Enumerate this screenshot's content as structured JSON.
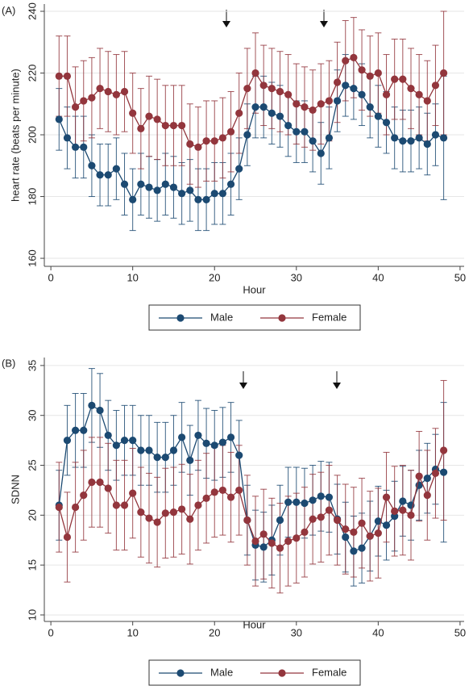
{
  "chart_data": [
    {
      "type": "line",
      "panel_label": "(A)",
      "xlabel": "Hour",
      "ylabel": "heart rate (beats per minute)",
      "x": [
        1,
        2,
        3,
        4,
        5,
        6,
        7,
        8,
        9,
        10,
        11,
        12,
        13,
        14,
        15,
        16,
        17,
        18,
        19,
        20,
        21,
        22,
        23,
        24,
        25,
        26,
        27,
        28,
        29,
        30,
        31,
        32,
        33,
        34,
        35,
        36,
        37,
        38,
        39,
        40,
        41,
        42,
        43,
        44,
        45,
        46,
        47,
        48
      ],
      "xlim": [
        -0.8,
        50.5
      ],
      "xticks": [
        0,
        10,
        20,
        30,
        40,
        50
      ],
      "ylim": [
        157.4,
        242.35
      ],
      "yticks": [
        160,
        180,
        200,
        220,
        240
      ],
      "grid": true,
      "series": [
        {
          "name": "Male",
          "color": "#1c4a72",
          "values": [
            205,
            199,
            196,
            196,
            190,
            187,
            187,
            189,
            184,
            179,
            184,
            183,
            182,
            184,
            183,
            181,
            182,
            179,
            179,
            181,
            181,
            184,
            189,
            200,
            209,
            209,
            207,
            206,
            203,
            201,
            201,
            198,
            194,
            199,
            211,
            216,
            215,
            213,
            209,
            206,
            204,
            199,
            198,
            198,
            199,
            197,
            200,
            199
          ],
          "errors": [
            10,
            10,
            10,
            10,
            10,
            10,
            10,
            10,
            10,
            10,
            10,
            10,
            10,
            10,
            10,
            10,
            10,
            10,
            10,
            10,
            10,
            10,
            10,
            10,
            10,
            10,
            10,
            10,
            10,
            10,
            10,
            10,
            10,
            10,
            10,
            10,
            10,
            10,
            10,
            10,
            10,
            10,
            10,
            10,
            10,
            10,
            10,
            20
          ]
        },
        {
          "name": "Female",
          "color": "#93363d",
          "values": [
            219,
            219,
            209,
            211,
            212,
            215,
            214,
            213,
            214,
            207,
            202,
            206,
            205,
            203,
            203,
            203,
            197,
            196,
            198,
            198,
            199,
            201,
            207,
            215,
            220,
            216,
            215,
            214,
            213,
            210,
            209,
            208,
            210,
            211,
            217,
            224,
            225,
            221,
            219,
            220,
            213,
            218,
            218,
            215,
            213,
            211,
            216,
            220
          ],
          "errors": [
            13,
            13,
            13,
            13,
            13,
            13,
            13,
            13,
            13,
            13,
            13,
            13,
            13,
            13,
            13,
            13,
            13,
            13,
            13,
            13,
            13,
            13,
            13,
            13,
            13,
            13,
            13,
            13,
            13,
            13,
            13,
            13,
            13,
            13,
            13,
            13,
            13,
            13,
            13,
            13,
            13,
            13,
            13,
            13,
            13,
            13,
            13,
            20
          ]
        }
      ]
    },
    {
      "type": "line",
      "panel_label": "(B)",
      "xlabel": "Hour",
      "ylabel": "SDNN",
      "x": [
        1,
        2,
        3,
        4,
        5,
        6,
        7,
        8,
        9,
        10,
        11,
        12,
        13,
        14,
        15,
        16,
        17,
        18,
        19,
        20,
        21,
        22,
        23,
        24,
        25,
        26,
        27,
        28,
        29,
        30,
        31,
        32,
        33,
        34,
        35,
        36,
        37,
        38,
        39,
        40,
        41,
        42,
        43,
        44,
        45,
        46,
        47,
        48
      ],
      "xlim": [
        -0.8,
        50.5
      ],
      "xticks": [
        0,
        10,
        20,
        30,
        40,
        50
      ],
      "ylim": [
        9.35,
        35.8
      ],
      "yticks": [
        10,
        15,
        20,
        25,
        30,
        35
      ],
      "grid": true,
      "series": [
        {
          "name": "Male",
          "color": "#1c4a72",
          "values": [
            21,
            27.5,
            28.5,
            28.5,
            31,
            30.5,
            28,
            27,
            27.5,
            27.5,
            26.5,
            26.5,
            25.8,
            25.8,
            26.5,
            27.8,
            25.5,
            28,
            27.2,
            27,
            27.3,
            27.8,
            26,
            19.5,
            17,
            16.8,
            17.5,
            19.5,
            21.3,
            21.3,
            21.2,
            21.5,
            21.9,
            21.8,
            19.6,
            17.8,
            16.4,
            16.7,
            17.9,
            19.4,
            19,
            19.9,
            21.4,
            21,
            23,
            23.7,
            24.6,
            24.3
          ],
          "errors": [
            3.5,
            3.5,
            3.7,
            3.7,
            3.7,
            3.7,
            3.5,
            3.5,
            3.5,
            3.5,
            3.5,
            3.5,
            3.5,
            3.5,
            3.5,
            3.5,
            3.5,
            3.5,
            3.5,
            3.5,
            3.5,
            3.5,
            3.5,
            3.5,
            3.5,
            3.5,
            3.5,
            3.5,
            3.5,
            3.5,
            3.5,
            3.5,
            3.5,
            3.5,
            3.5,
            3.5,
            3.5,
            3.5,
            3.5,
            3.5,
            3.5,
            3.5,
            3.5,
            3.5,
            3.5,
            3.5,
            3.5,
            7
          ]
        },
        {
          "name": "Female",
          "color": "#93363d",
          "values": [
            20.8,
            17.8,
            20.8,
            22,
            23.3,
            23.3,
            22.7,
            21,
            21,
            22.2,
            20.3,
            19.7,
            19.3,
            20.2,
            20.3,
            20.6,
            19.6,
            21,
            21.7,
            22.3,
            22.5,
            21.8,
            22.5,
            19.5,
            17.4,
            18.1,
            17.2,
            16.7,
            17.4,
            17.7,
            18.3,
            19.6,
            19.8,
            20.5,
            19.5,
            18.6,
            18.3,
            19.2,
            17.9,
            18.2,
            21.8,
            20.4,
            20.5,
            20,
            23.9,
            22,
            24.2,
            26.5
          ],
          "errors": [
            4.5,
            4.5,
            4.5,
            4.5,
            4.5,
            4.5,
            4.5,
            4.5,
            4.5,
            4.5,
            4.5,
            4.5,
            4.5,
            4.5,
            4.5,
            4.5,
            4.5,
            4.5,
            4.5,
            4.5,
            4.5,
            4.5,
            4.5,
            4.5,
            4.5,
            4.5,
            4.5,
            4.5,
            4.5,
            4.5,
            4.5,
            4.5,
            4.5,
            4.5,
            4.5,
            4.5,
            4.5,
            4.5,
            4.5,
            4.5,
            4.5,
            4.5,
            4.5,
            4.5,
            4.5,
            4.5,
            4.5,
            7
          ]
        }
      ]
    }
  ]
}
